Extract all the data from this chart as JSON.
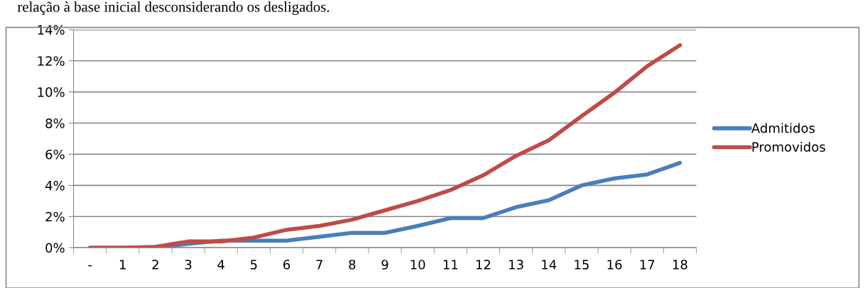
{
  "chart_data": {
    "type": "line",
    "annotations": [
      "relação à base inicial desconsiderando os desligados."
    ],
    "categories": [
      "-",
      "1",
      "2",
      "3",
      "4",
      "5",
      "6",
      "7",
      "8",
      "9",
      "10",
      "11",
      "12",
      "13",
      "14",
      "15",
      "16",
      "17",
      "18"
    ],
    "series": [
      {
        "name": "Admitidos",
        "color": "#4a7ebb",
        "values": [
          0,
          0,
          0,
          0.25,
          0.45,
          0.45,
          0.45,
          0.7,
          0.95,
          0.95,
          1.4,
          1.9,
          1.9,
          2.6,
          3.05,
          4.0,
          4.45,
          4.7,
          5.45
        ]
      },
      {
        "name": "Promovidos",
        "color": "#be4b48",
        "values": [
          0,
          0,
          0.05,
          0.4,
          0.4,
          0.65,
          1.15,
          1.4,
          1.8,
          2.4,
          3.0,
          3.7,
          4.65,
          5.9,
          6.9,
          8.45,
          9.95,
          11.65,
          13.0
        ]
      }
    ],
    "ylim": [
      0,
      14
    ],
    "yticks": [
      {
        "value": 0,
        "label": "0%"
      },
      {
        "value": 2,
        "label": "2%"
      },
      {
        "value": 4,
        "label": "4%"
      },
      {
        "value": 6,
        "label": "6%"
      },
      {
        "value": 8,
        "label": "8%"
      },
      {
        "value": 10,
        "label": "10%"
      },
      {
        "value": 12,
        "label": "12%"
      },
      {
        "value": 14,
        "label": "14%"
      }
    ],
    "grid": "y",
    "legend": "right",
    "marker": "none",
    "line_style": "solid"
  }
}
